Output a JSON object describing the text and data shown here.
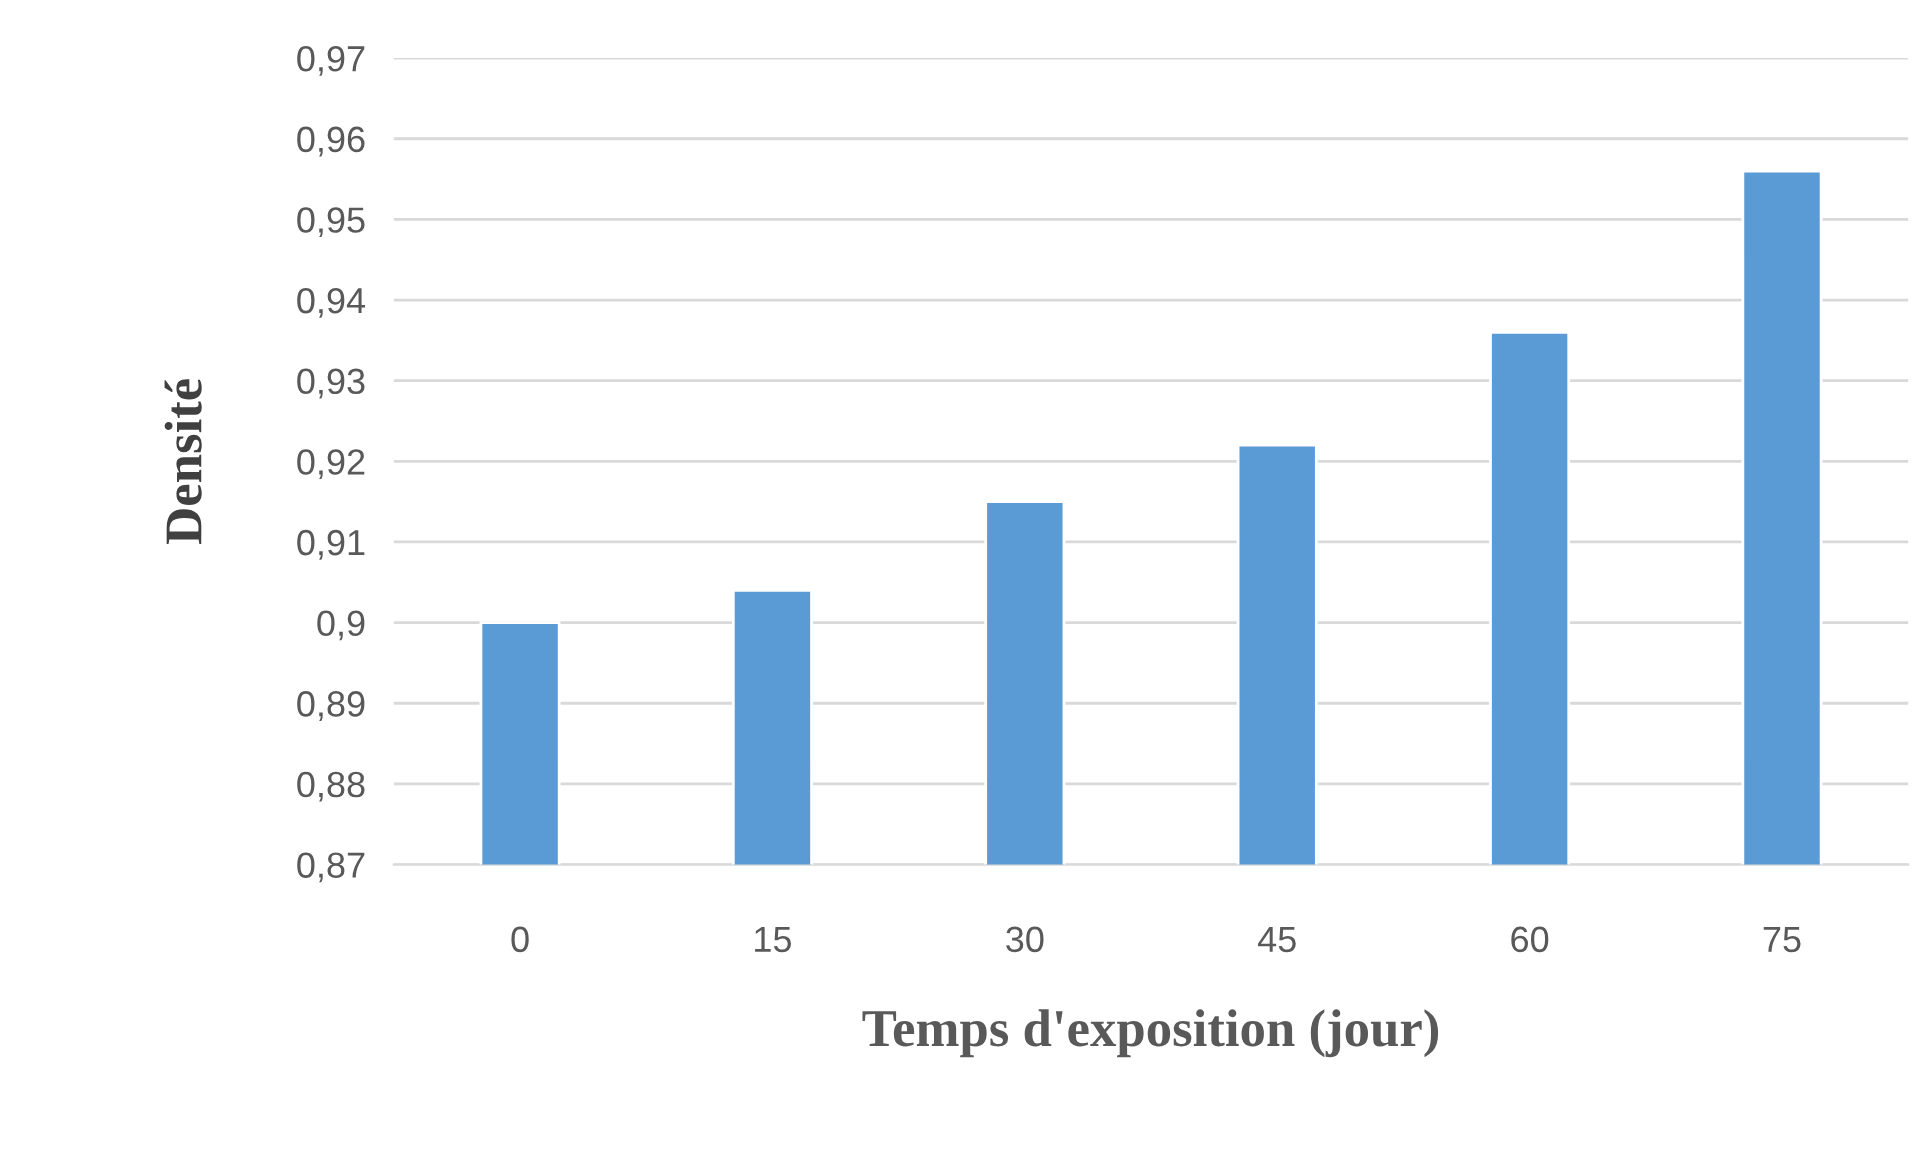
{
  "chart_data": {
    "type": "bar",
    "xlabel": "Temps d'exposition (jour)",
    "ylabel": "Densité",
    "categories": [
      "0",
      "15",
      "30",
      "45",
      "60",
      "75"
    ],
    "values": [
      0.9,
      0.904,
      0.915,
      0.922,
      0.936,
      0.956
    ],
    "color": "#5b9bd5",
    "ylim": [
      0.87,
      0.97
    ],
    "yticks": [
      {
        "value": 0.87,
        "label": "0,87"
      },
      {
        "value": 0.88,
        "label": "0,88"
      },
      {
        "value": 0.89,
        "label": "0,89"
      },
      {
        "value": 0.9,
        "label": "0,9"
      },
      {
        "value": 0.91,
        "label": "0,91"
      },
      {
        "value": 0.92,
        "label": "0,92"
      },
      {
        "value": 0.93,
        "label": "0,93"
      },
      {
        "value": 0.94,
        "label": "0,94"
      },
      {
        "value": 0.95,
        "label": "0,95"
      },
      {
        "value": 0.96,
        "label": "0,96"
      },
      {
        "value": 0.97,
        "label": "0,97"
      }
    ],
    "grid": "y"
  }
}
